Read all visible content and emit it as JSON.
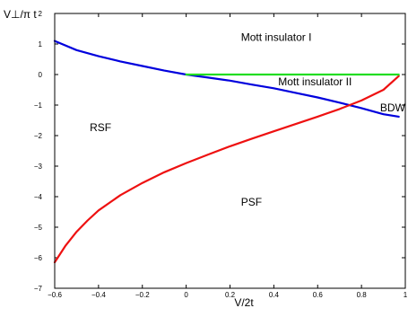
{
  "chart_data": {
    "type": "line",
    "xlabel": "V/2t",
    "ylabel": "V⊥/π t",
    "xlim": [
      -0.6,
      1.0
    ],
    "ylim": [
      -7,
      2
    ],
    "xticks": [
      -0.6,
      -0.4,
      -0.2,
      0,
      0.2,
      0.4,
      0.6,
      0.8,
      1
    ],
    "xtick_labels": [
      "−0.6",
      "−0.4",
      "−0.2",
      "0",
      "0.2",
      "0.4",
      "0.6",
      "0.8",
      "1"
    ],
    "yticks": [
      -7,
      -6,
      -5,
      -4,
      -3,
      -2,
      -1,
      0,
      1,
      2
    ],
    "ytick_labels": [
      "−7",
      "−6",
      "−5",
      "−4",
      "−3",
      "−2",
      "−1",
      "0",
      "1",
      "2"
    ],
    "grid": false,
    "series": [
      {
        "color": "#0000dd",
        "x": [
          -0.6,
          -0.5,
          -0.4,
          -0.3,
          -0.2,
          -0.1,
          0.0,
          0.1,
          0.2,
          0.3,
          0.4,
          0.5,
          0.6,
          0.7,
          0.8,
          0.9,
          0.97
        ],
        "y": [
          1.1,
          0.8,
          0.6,
          0.43,
          0.28,
          0.13,
          0.0,
          -0.1,
          -0.2,
          -0.33,
          -0.45,
          -0.6,
          -0.75,
          -0.92,
          -1.1,
          -1.3,
          -1.38
        ]
      },
      {
        "color": "#ee1111",
        "x": [
          -0.6,
          -0.55,
          -0.5,
          -0.45,
          -0.4,
          -0.3,
          -0.2,
          -0.1,
          0.0,
          0.1,
          0.2,
          0.3,
          0.4,
          0.5,
          0.6,
          0.7,
          0.8,
          0.9,
          0.97
        ],
        "y": [
          -6.15,
          -5.6,
          -5.15,
          -4.78,
          -4.45,
          -3.95,
          -3.55,
          -3.2,
          -2.9,
          -2.62,
          -2.35,
          -2.1,
          -1.86,
          -1.62,
          -1.38,
          -1.13,
          -0.85,
          -0.5,
          -0.05
        ]
      },
      {
        "color": "#22dd22",
        "x": [
          0.0,
          0.97
        ],
        "y": [
          0.0,
          0.0
        ]
      }
    ],
    "annotations": [
      {
        "text": "Mott insulator I",
        "x": 0.25,
        "y": 1.1
      },
      {
        "text": "Mott insulator II",
        "x": 0.42,
        "y": -0.35
      },
      {
        "text": "BDW",
        "x": 0.885,
        "y": -1.2
      },
      {
        "text": "RSF",
        "x": -0.44,
        "y": -1.85
      },
      {
        "text": "PSF",
        "x": 0.25,
        "y": -4.3
      }
    ]
  }
}
